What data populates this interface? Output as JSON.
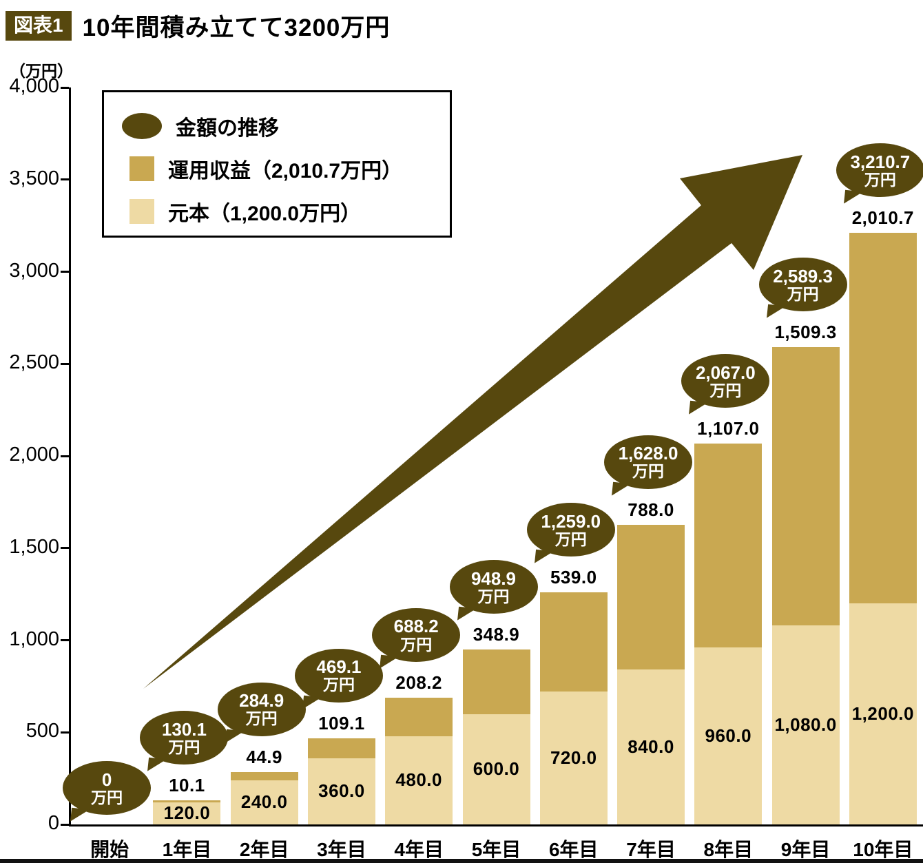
{
  "header": {
    "badge": "図表1",
    "title": "10年間積み立てて3200万円"
  },
  "axis": {
    "unit": "（万円）",
    "yticks": [
      4000,
      3500,
      3000,
      2500,
      2000,
      1500,
      1000,
      500,
      0
    ],
    "ytick_labels": [
      "4,000",
      "3,500",
      "3,000",
      "2,500",
      "2,000",
      "1,500",
      "1,000",
      "500",
      "0"
    ]
  },
  "legend": {
    "items": [
      {
        "icon": "dark-ellipse",
        "label": "金額の推移"
      },
      {
        "icon": "gold-square",
        "label": "運用収益（2,010.7万円）"
      },
      {
        "icon": "tan-square",
        "label": "元本（1,200.0万円）"
      }
    ]
  },
  "colors": {
    "dark_brown": "#57480e",
    "gold": "#c9a851",
    "tan": "#eedaa4"
  },
  "chart_data": {
    "type": "bar",
    "stacked": true,
    "title": "10年間積み立てて3200万円",
    "ylabel": "（万円）",
    "ylim": [
      0,
      4000
    ],
    "grid": false,
    "legend_position": "top-left",
    "categories": [
      "開始",
      "1年目",
      "2年目",
      "3年目",
      "4年目",
      "5年目",
      "6年目",
      "7年目",
      "8年目",
      "9年目",
      "10年目"
    ],
    "series": [
      {
        "name": "元本",
        "values": [
          0,
          120.0,
          240.0,
          360.0,
          480.0,
          600.0,
          720.0,
          840.0,
          960.0,
          1080.0,
          1200.0
        ],
        "labels": [
          "",
          "120.0",
          "240.0",
          "360.0",
          "480.0",
          "600.0",
          "720.0",
          "840.0",
          "960.0",
          "1,080.0",
          "1,200.0"
        ]
      },
      {
        "name": "運用収益",
        "values": [
          0,
          10.1,
          44.9,
          109.1,
          208.2,
          348.9,
          539.0,
          788.0,
          1107.0,
          1509.3,
          2010.7
        ],
        "labels": [
          "",
          "10.1",
          "44.9",
          "109.1",
          "208.2",
          "348.9",
          "539.0",
          "788.0",
          "1,107.0",
          "1,509.3",
          "2,010.7"
        ]
      }
    ],
    "totals": [
      0,
      130.1,
      284.9,
      469.1,
      688.2,
      948.9,
      1259.0,
      1628.0,
      2067.0,
      2589.3,
      3210.7
    ],
    "bubble_labels": [
      "0",
      "130.1",
      "284.9",
      "469.1",
      "688.2",
      "948.9",
      "1,259.0",
      "1,628.0",
      "2,067.0",
      "2,589.3",
      "3,210.7"
    ],
    "bubble_unit": "万円"
  }
}
